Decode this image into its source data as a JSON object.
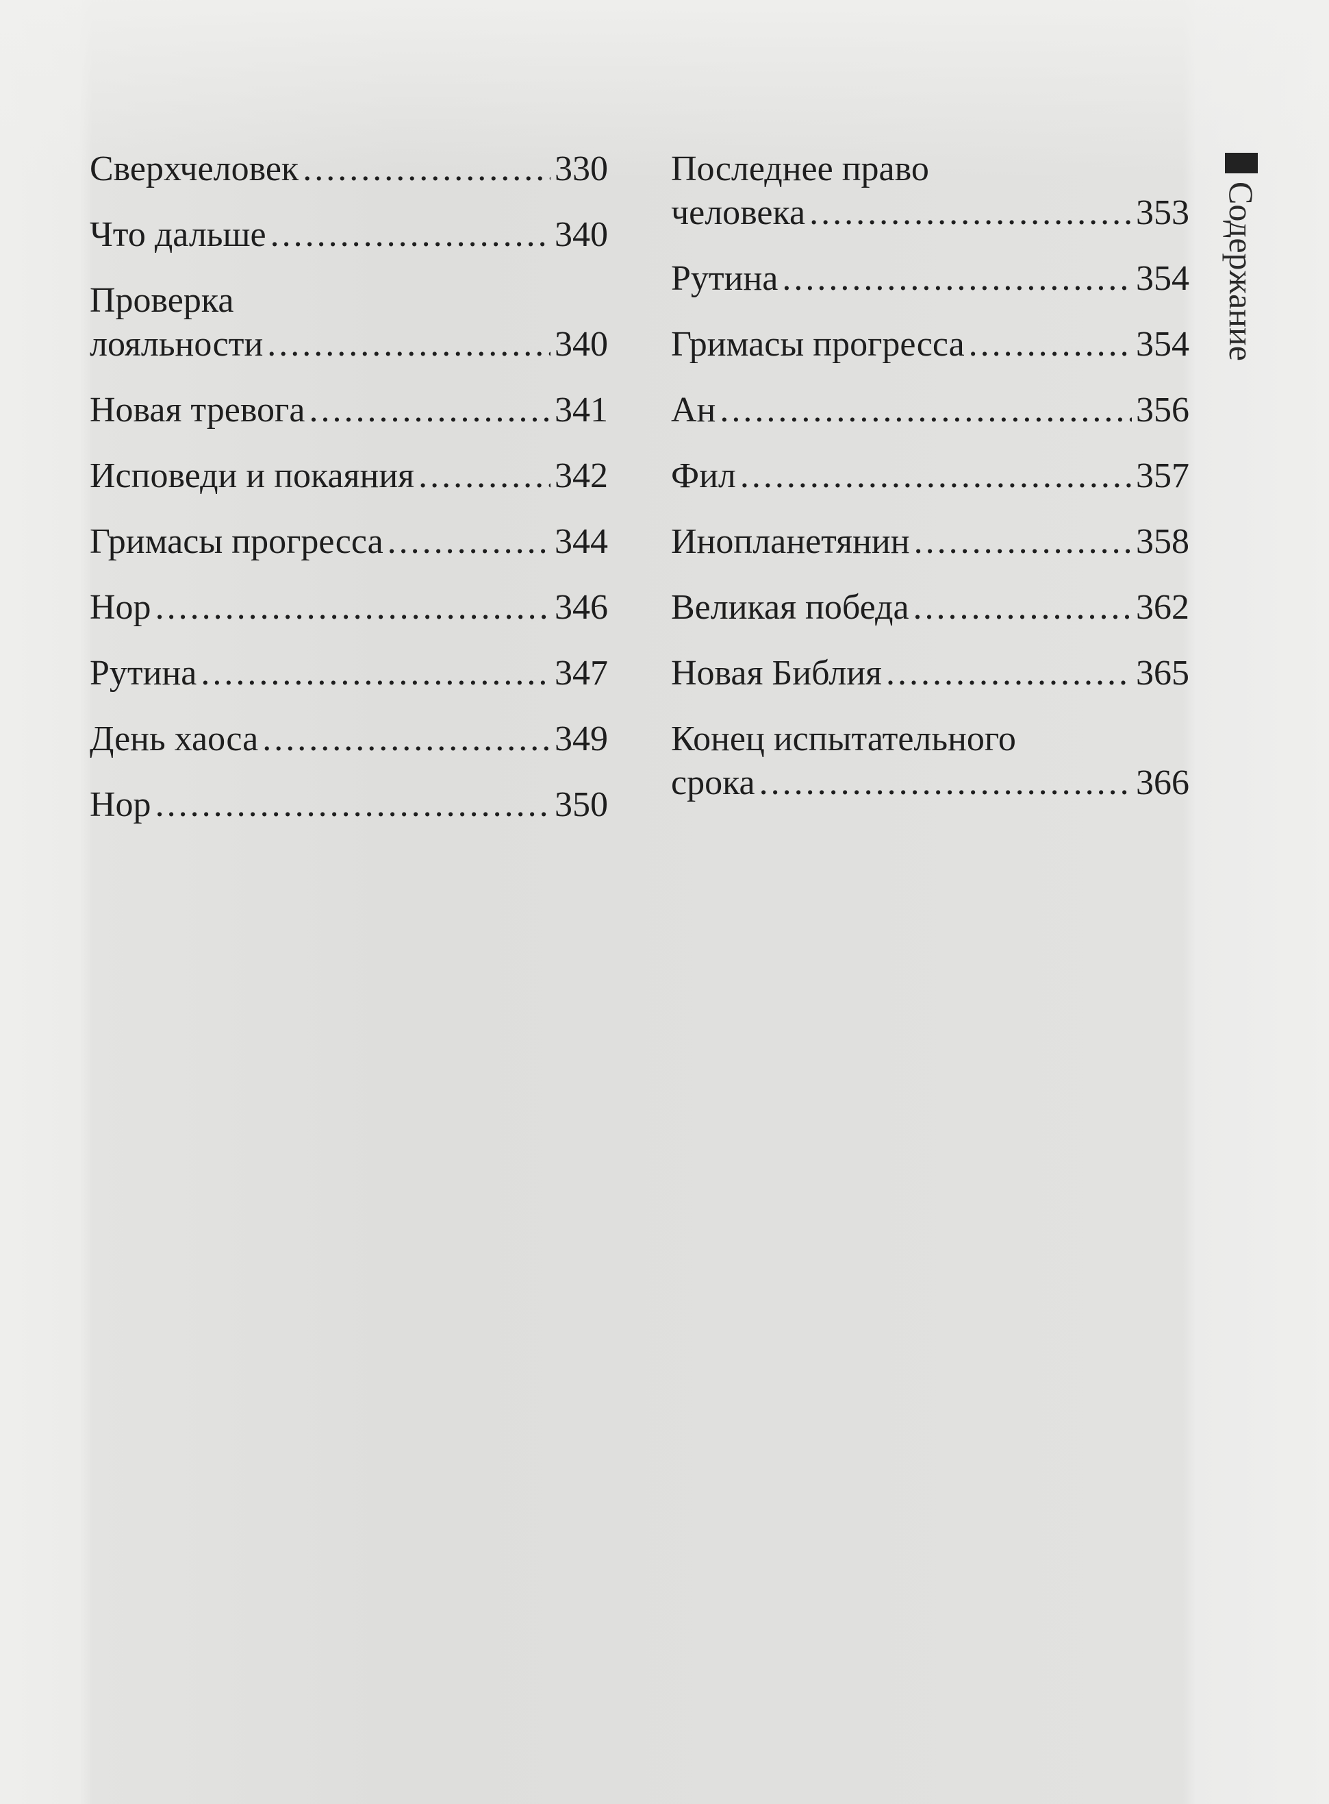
{
  "side_title": "Содержание",
  "left_entries": [
    {
      "title": [
        "Сверхчеловек"
      ],
      "page": "330"
    },
    {
      "title": [
        "Что дальше"
      ],
      "page": "340"
    },
    {
      "title": [
        "Проверка",
        "лояльности"
      ],
      "page": "340"
    },
    {
      "title": [
        "Новая тревога"
      ],
      "page": "341"
    },
    {
      "title": [
        "Исповеди и покаяния"
      ],
      "page": "342"
    },
    {
      "title": [
        "Гримасы прогресса"
      ],
      "page": "344"
    },
    {
      "title": [
        "Нор"
      ],
      "page": "346"
    },
    {
      "title": [
        "Рутина"
      ],
      "page": "347"
    },
    {
      "title": [
        "День хаоса"
      ],
      "page": "349"
    },
    {
      "title": [
        "Нор"
      ],
      "page": "350"
    }
  ],
  "right_entries": [
    {
      "title": [
        "Последнее право",
        "человека"
      ],
      "page": "353"
    },
    {
      "title": [
        "Рутина"
      ],
      "page": "354"
    },
    {
      "title": [
        "Гримасы прогресса"
      ],
      "page": "354"
    },
    {
      "title": [
        "Ан"
      ],
      "page": "356"
    },
    {
      "title": [
        "Фил"
      ],
      "page": "357"
    },
    {
      "title": [
        "Инопланетянин"
      ],
      "page": "358"
    },
    {
      "title": [
        "Великая победа"
      ],
      "page": "362"
    },
    {
      "title": [
        "Новая Библия"
      ],
      "page": "365"
    },
    {
      "title": [
        "Конец испытательного",
        "срока"
      ],
      "page": "366"
    }
  ]
}
